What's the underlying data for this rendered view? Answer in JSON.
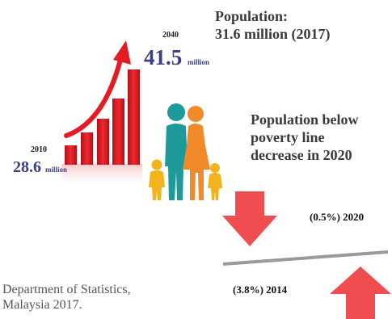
{
  "growth": {
    "year_2040": "2040",
    "value_2040": "41.5",
    "unit_2040": "million",
    "year_2010": "2010",
    "value_2010": "28.6",
    "unit_2010": "million",
    "colors": {
      "bar": "#e41b23",
      "arrow": "#e41b23",
      "value": "#3a3f86"
    }
  },
  "population": {
    "title": "Population:",
    "value": "31.6 million (2017)"
  },
  "poverty": {
    "line1": "Population below",
    "line2": "poverty line",
    "line3": "decrease in 2020",
    "label_2020": "(0.5%) 2020",
    "label_2014": "(3.8%) 2014",
    "arrow_color": "#ef4d4f",
    "line_color": "#9a9a9a"
  },
  "source": {
    "line1": "Department of Statistics,",
    "line2": "Malaysia 2017."
  },
  "family_icon": "family-icon"
}
